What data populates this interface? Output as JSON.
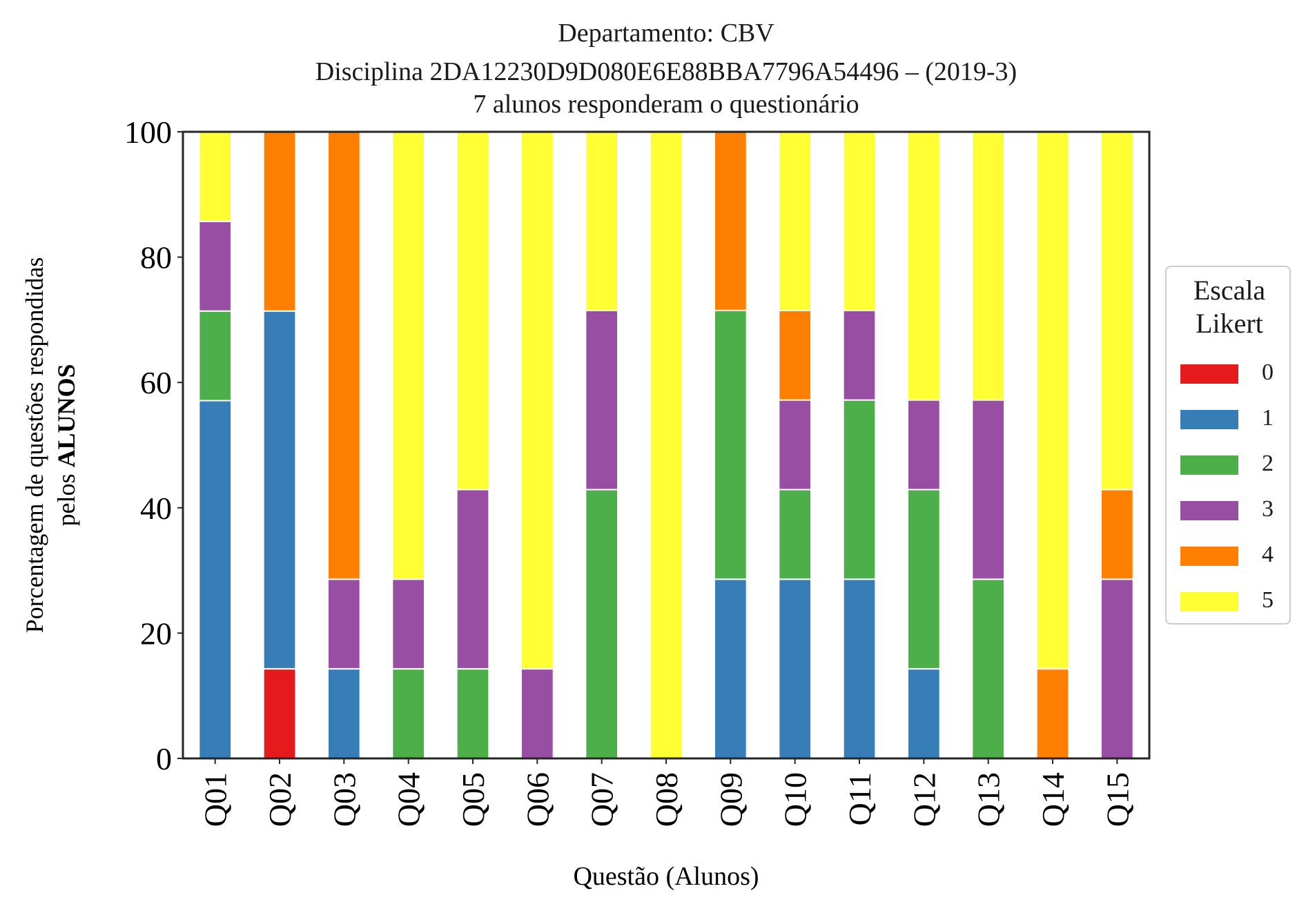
{
  "title_lines": [
    "Departamento: CBV",
    "Disciplina 2DA12230D9D080E6E88BBA7796A54496 – (2019-3)",
    "7 alunos responderam o questionário"
  ],
  "ylabel_line1": "Porcentagem de questões respondidas",
  "ylabel_line2_prefix": "pelos ",
  "ylabel_line2_bold": "ALUNOS",
  "xlabel": "Questão (Alunos)",
  "legend": {
    "title_line1": "Escala",
    "title_line2": "Likert",
    "items": [
      "0",
      "1",
      "2",
      "3",
      "4",
      "5"
    ]
  },
  "colors": {
    "0": "#e41a1c",
    "1": "#377eb8",
    "2": "#4daf4a",
    "3": "#984ea3",
    "4": "#ff7f00",
    "5": "#ffff33"
  },
  "chart_data": {
    "type": "bar",
    "stacked": true,
    "categories": [
      "Q01",
      "Q02",
      "Q03",
      "Q04",
      "Q05",
      "Q06",
      "Q07",
      "Q08",
      "Q09",
      "Q10",
      "Q11",
      "Q12",
      "Q13",
      "Q14",
      "Q15"
    ],
    "series": [
      {
        "name": "0",
        "values": [
          0,
          14.3,
          0,
          0,
          0,
          0,
          0,
          0,
          0,
          0,
          0,
          0,
          0,
          0,
          0
        ]
      },
      {
        "name": "1",
        "values": [
          57.1,
          57.1,
          14.3,
          0,
          0,
          0,
          0,
          0,
          28.6,
          28.6,
          28.6,
          14.3,
          0,
          0,
          0
        ]
      },
      {
        "name": "2",
        "values": [
          14.3,
          0,
          0,
          14.3,
          14.3,
          0,
          42.9,
          0,
          42.9,
          14.3,
          28.6,
          28.6,
          28.6,
          0,
          0
        ]
      },
      {
        "name": "3",
        "values": [
          14.3,
          0,
          14.3,
          14.3,
          28.6,
          14.3,
          28.6,
          0,
          0,
          14.3,
          14.3,
          14.3,
          28.6,
          0,
          28.6
        ]
      },
      {
        "name": "4",
        "values": [
          0,
          28.6,
          71.4,
          0,
          0,
          0,
          0,
          0,
          28.6,
          14.3,
          0,
          0,
          0,
          14.3,
          14.3
        ]
      },
      {
        "name": "5",
        "values": [
          14.3,
          0,
          0,
          71.4,
          57.1,
          85.7,
          28.6,
          100,
          0,
          28.6,
          28.6,
          42.9,
          42.9,
          85.7,
          57.1
        ]
      }
    ],
    "ylim": [
      0,
      100
    ],
    "yticks": [
      "0",
      "20",
      "40",
      "60",
      "80",
      "100"
    ],
    "grid": false,
    "legend_position": "right"
  }
}
